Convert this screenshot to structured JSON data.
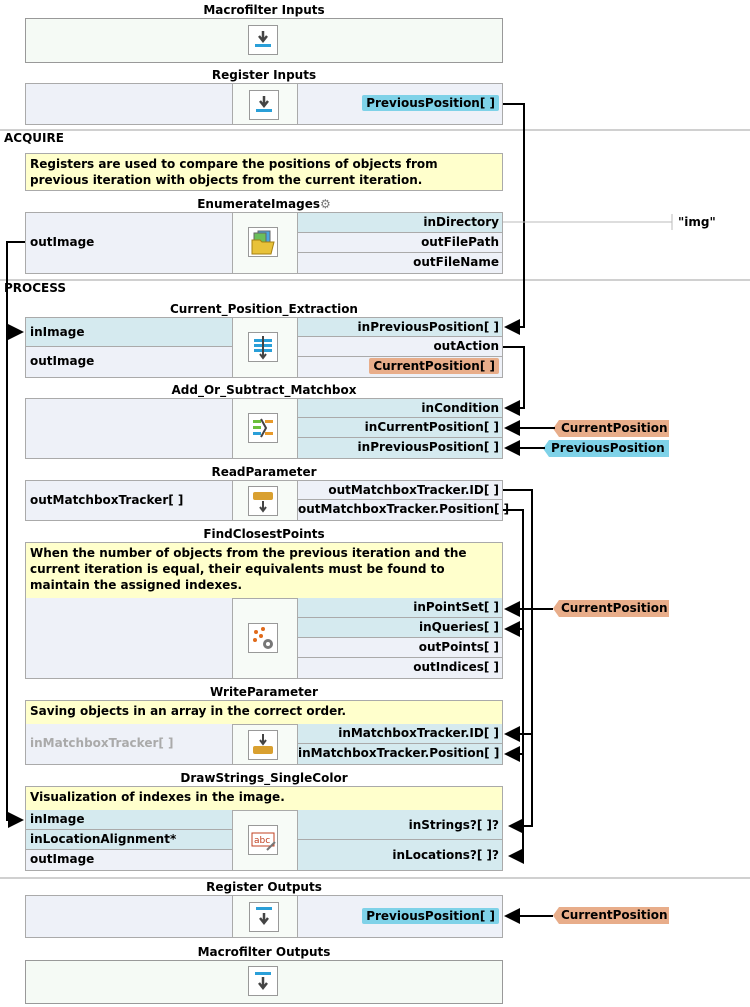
{
  "macrofilter_inputs": {
    "title": "Macrofilter Inputs",
    "icon": "download-arrow-icon"
  },
  "register_inputs": {
    "title": "Register Inputs",
    "port": "PreviousPosition[ ]"
  },
  "sections": {
    "acquire": "ACQUIRE",
    "process": "PROCESS"
  },
  "comment_registers": "Registers are used to compare the positions of objects from previous iteration with objects from the current iteration.",
  "enumerate_images": {
    "title": "EnumerateImages",
    "outputs_left": [
      "outImage"
    ],
    "ports": [
      "inDirectory",
      "outFilePath",
      "outFileName"
    ],
    "inDirectory_value": "\"img\""
  },
  "current_position_extraction": {
    "title": "Current_Position_Extraction",
    "left": [
      "inImage",
      "outImage"
    ],
    "ports": [
      "inPreviousPosition[ ]",
      "outAction",
      "CurrentPosition[ ]"
    ]
  },
  "add_or_subtract": {
    "title": "Add_Or_Subtract_Matchbox",
    "ports": [
      "inCondition",
      "inCurrentPosition[ ]",
      "inPreviousPosition[ ]"
    ],
    "ext": [
      "CurrentPosition",
      "PreviousPosition"
    ]
  },
  "read_parameter": {
    "title": "ReadParameter",
    "left": [
      "outMatchboxTracker[ ]"
    ],
    "ports": [
      "outMatchboxTracker.ID[ ]",
      "outMatchboxTracker.Position[ ]"
    ]
  },
  "find_closest_points": {
    "title": "FindClosestPoints",
    "comment": "When the number of objects from the previous iteration and the current iteration is equal, their equivalents must be found to maintain the assigned indexes.",
    "ports": [
      "inPointSet[ ]",
      "inQueries[ ]",
      "outPoints[ ]",
      "outIndices[ ]"
    ],
    "ext": "CurrentPosition"
  },
  "write_parameter": {
    "title": "WriteParameter",
    "comment": "Saving objects in an array in the correct order.",
    "left": [
      "inMatchboxTracker[ ]"
    ],
    "ports": [
      "inMatchboxTracker.ID[ ]",
      "inMatchboxTracker.Position[ ]"
    ]
  },
  "draw_strings": {
    "title": "DrawStrings_SingleColor",
    "comment": "Visualization of indexes in the image.",
    "left": [
      "inImage",
      "inLocationAlignment*",
      "outImage"
    ],
    "ports": [
      "inStrings?[ ]?",
      "inLocations?[ ]?"
    ]
  },
  "register_outputs": {
    "title": "Register Outputs",
    "port": "PreviousPosition[ ]",
    "ext": "CurrentPosition"
  },
  "macrofilter_outputs": {
    "title": "Macrofilter Outputs"
  },
  "colors": {
    "register_tag": "#7fd2e8",
    "current_tag": "#e8ad8a",
    "comment": "#ffffcc",
    "input_port": "#d5eaef",
    "output_port": "#eef1f8"
  }
}
